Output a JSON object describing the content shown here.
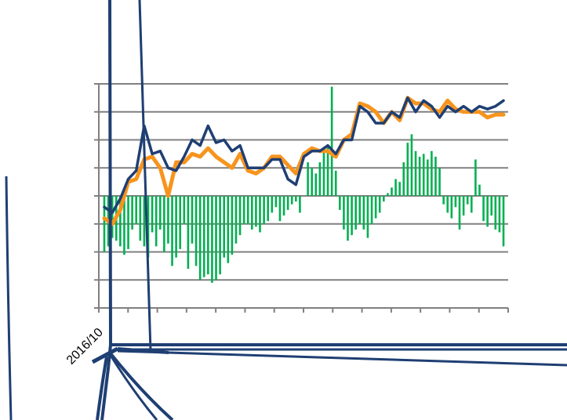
{
  "chart_data": {
    "type": "line",
    "title": "",
    "xlabel": "",
    "ylabel": "",
    "x_tick_labels": [
      "2016/10"
    ],
    "x_range": [
      0,
      100
    ],
    "y_range": [
      -4,
      4
    ],
    "grid": true,
    "legend": "none",
    "colors": {
      "navy": "#1f3f73",
      "orange": "#f7941d",
      "green": "#00b050",
      "grid": "#808080"
    },
    "series": [
      {
        "color": "navy",
        "style": "line",
        "x": [
          0,
          2,
          4,
          6,
          8,
          10,
          12,
          14,
          16,
          18,
          20,
          22,
          24,
          26,
          28,
          30,
          32,
          34,
          36,
          38,
          40,
          42,
          44,
          46,
          48,
          50,
          52,
          54,
          56,
          58,
          60,
          62,
          64,
          66,
          68,
          70,
          72,
          74,
          76,
          78,
          80,
          82,
          84,
          86,
          88,
          90,
          92,
          94,
          96,
          98,
          100
        ],
        "y": [
          -0.4,
          -0.6,
          -0.1,
          0.6,
          0.9,
          2.5,
          1.5,
          1.6,
          1.0,
          0.9,
          1.4,
          2.0,
          1.8,
          2.5,
          1.9,
          2.0,
          1.6,
          1.8,
          1.0,
          1.0,
          1.0,
          1.3,
          1.3,
          0.6,
          0.4,
          1.4,
          1.6,
          1.6,
          1.8,
          1.5,
          2.0,
          2.0,
          3.2,
          3.0,
          2.6,
          2.6,
          3.0,
          2.8,
          3.5,
          3.0,
          3.4,
          3.2,
          2.8,
          3.2,
          3.0,
          3.2,
          3.0,
          3.2,
          3.1,
          3.2,
          3.4
        ]
      },
      {
        "color": "orange",
        "style": "line",
        "x": [
          0,
          2,
          4,
          6,
          8,
          10,
          12,
          14,
          16,
          18,
          20,
          22,
          24,
          26,
          28,
          30,
          32,
          34,
          36,
          38,
          40,
          42,
          44,
          46,
          48,
          50,
          52,
          54,
          56,
          58,
          60,
          62,
          64,
          66,
          68,
          70,
          72,
          74,
          76,
          78,
          80,
          82,
          84,
          86,
          88,
          90,
          92,
          94,
          96,
          98,
          100
        ],
        "y": [
          -0.8,
          -1.0,
          -0.5,
          0.5,
          0.6,
          1.3,
          1.4,
          1.0,
          0.0,
          1.2,
          1.2,
          1.5,
          1.4,
          1.7,
          1.4,
          1.2,
          1.0,
          1.5,
          0.9,
          0.8,
          1.0,
          1.4,
          1.4,
          1.1,
          0.8,
          1.5,
          1.7,
          1.6,
          1.6,
          1.4,
          2.0,
          2.2,
          3.3,
          3.2,
          3.0,
          2.6,
          3.0,
          2.7,
          3.5,
          3.3,
          3.3,
          3.1,
          3.0,
          3.4,
          3.1,
          3.0,
          3.0,
          3.0,
          2.8,
          2.9,
          2.9
        ]
      },
      {
        "color": "green",
        "style": "bar",
        "x": [
          0,
          1,
          2,
          3,
          4,
          5,
          6,
          7,
          8,
          9,
          10,
          11,
          12,
          13,
          14,
          15,
          16,
          17,
          18,
          19,
          20,
          21,
          22,
          23,
          24,
          25,
          26,
          27,
          28,
          29,
          30,
          31,
          32,
          33,
          34,
          35,
          36,
          37,
          38,
          39,
          40,
          41,
          42,
          43,
          44,
          45,
          46,
          47,
          48,
          49,
          50,
          51,
          52,
          53,
          54,
          55,
          56,
          57,
          58,
          59,
          60,
          61,
          62,
          63,
          64,
          65,
          66,
          67,
          68,
          69,
          70,
          71,
          72,
          73,
          74,
          75,
          76,
          77,
          78,
          79,
          80,
          81,
          82,
          83,
          84,
          85,
          86,
          87,
          88,
          89,
          90,
          91,
          92,
          93,
          94,
          95,
          96,
          97,
          98,
          99,
          100
        ],
        "y": [
          -2.0,
          -1.8,
          -1.5,
          -1.6,
          -1.8,
          -2.1,
          -1.9,
          -1.2,
          -1.0,
          -1.6,
          -1.8,
          -2.2,
          -1.3,
          -1.8,
          -1.2,
          -2.0,
          -1.7,
          -2.5,
          -2.2,
          -1.9,
          -1.0,
          -2.6,
          -1.7,
          -2.5,
          -3.0,
          -2.9,
          -2.8,
          -3.1,
          -3.0,
          -2.8,
          -2.2,
          -2.4,
          -2.1,
          -1.7,
          -1.4,
          -1.0,
          -1.0,
          -1.2,
          -1.1,
          -1.3,
          -1.0,
          -0.9,
          -0.6,
          -0.4,
          -0.9,
          -0.7,
          -0.5,
          -0.3,
          -0.2,
          -0.6,
          0.0,
          1.2,
          1.0,
          0.8,
          1.2,
          1.6,
          1.8,
          3.9,
          0.9,
          -0.5,
          -1.2,
          -1.6,
          -1.4,
          -1.2,
          -1.0,
          -1.2,
          -1.5,
          -1.0,
          -0.8,
          -0.6,
          -0.2,
          0.1,
          0.3,
          0.6,
          0.5,
          1.2,
          1.9,
          2.2,
          1.6,
          1.4,
          1.5,
          1.3,
          1.6,
          1.4,
          1.0,
          -0.3,
          -0.6,
          -0.8,
          -0.4,
          -1.2,
          -0.7,
          -0.3,
          -0.6,
          1.3,
          0.4,
          -0.9,
          -1.1,
          -0.7,
          -1.2,
          -1.3,
          -1.8
        ]
      }
    ]
  }
}
